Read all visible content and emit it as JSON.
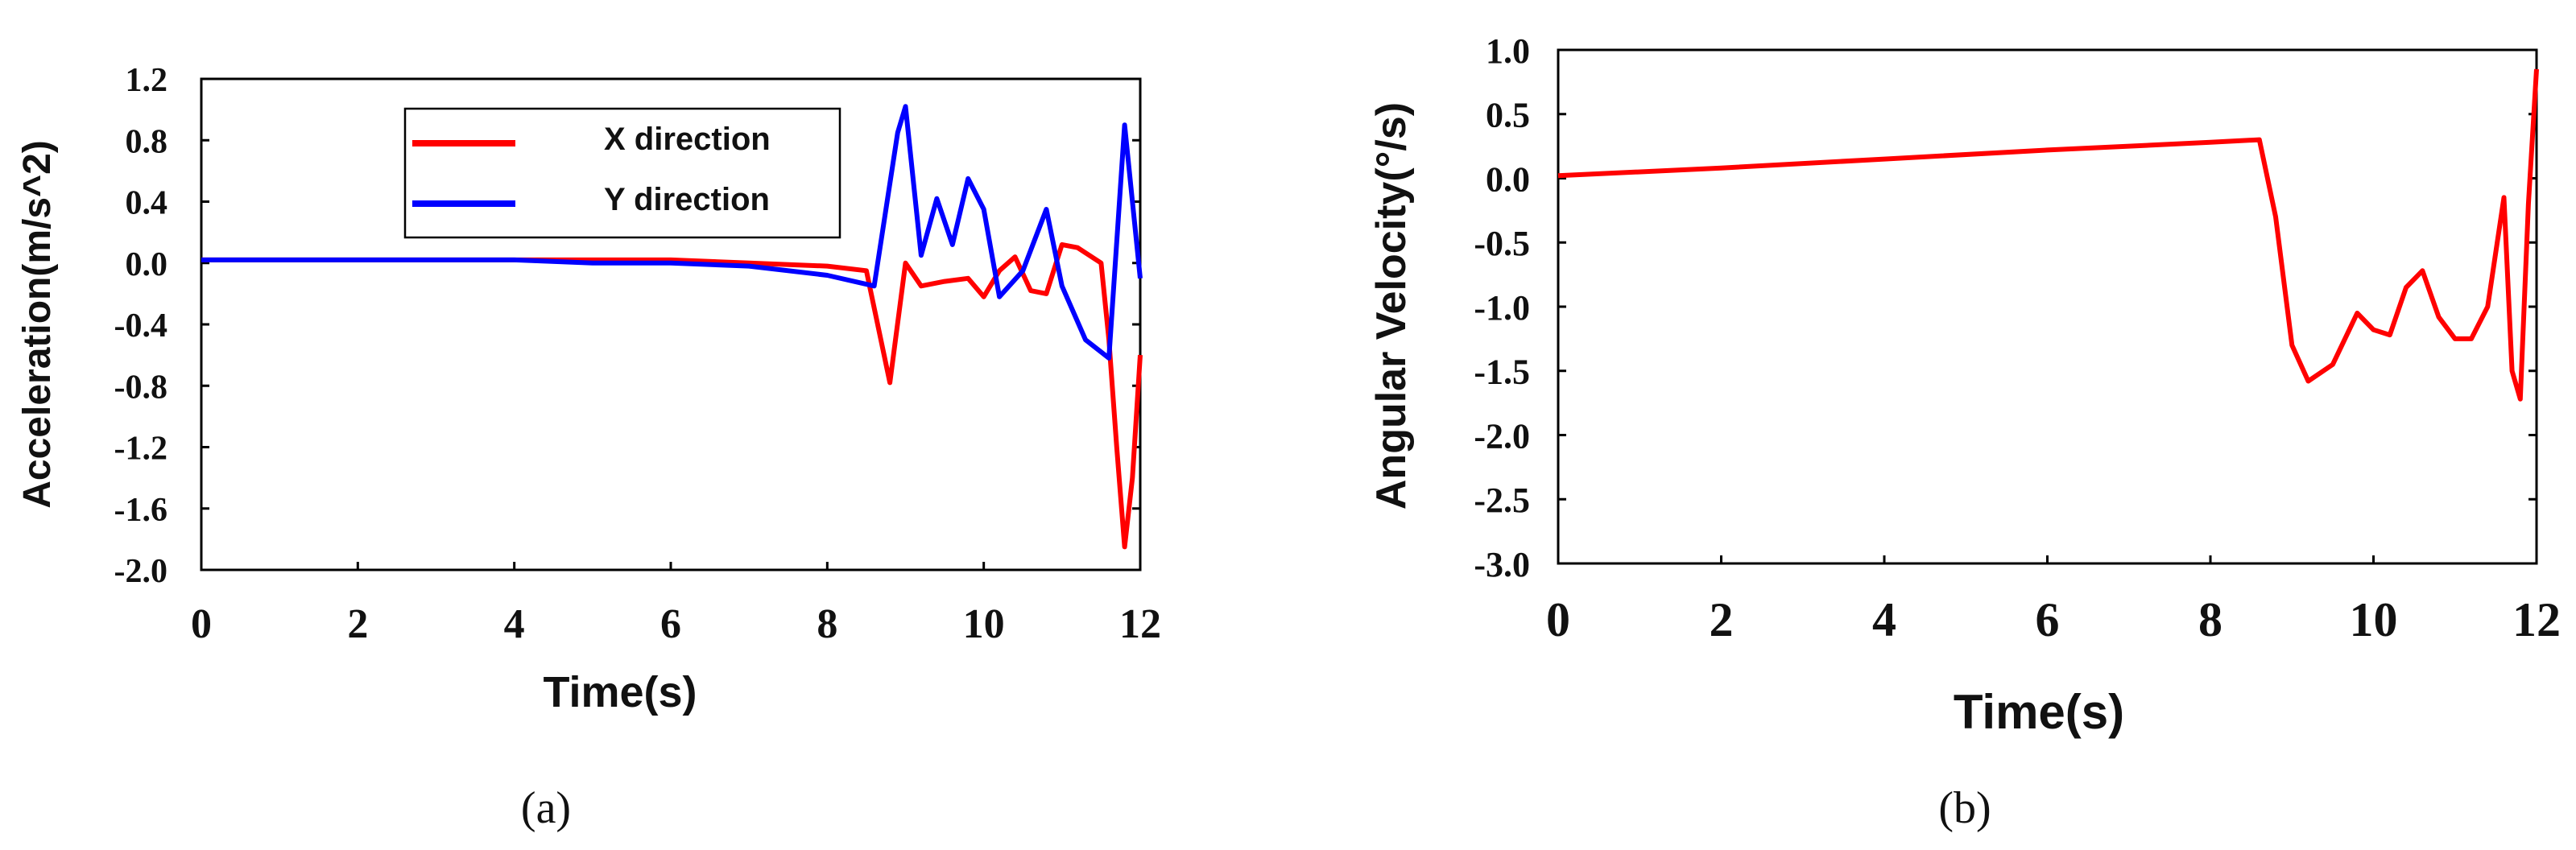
{
  "colors": {
    "x_series": "#ff0000",
    "y_series": "#0000ff",
    "axis": "#000000"
  },
  "chart_data": [
    {
      "panel": "(a)",
      "type": "line",
      "title": "",
      "xlabel": "Time(s)",
      "ylabel": "Acceleration(m/s^2)",
      "xlim": [
        0,
        12
      ],
      "ylim": [
        -2.0,
        1.2
      ],
      "xticks": [
        0,
        2,
        4,
        6,
        8,
        10,
        12
      ],
      "xtick_labels": [
        "0",
        "2",
        "4",
        "6",
        "8",
        "10",
        "12"
      ],
      "yticks": [
        1.2,
        0.8,
        0.4,
        0.0,
        -0.4,
        -0.8,
        -1.2,
        -1.6,
        -2.0
      ],
      "ytick_labels": [
        "1.2",
        "0.8",
        "0.4",
        "0.0",
        "-0.4",
        "-0.8",
        "-1.2",
        "-1.6",
        "-2.0"
      ],
      "grid": false,
      "legend_position": "top-center",
      "series": [
        {
          "name": "X direction",
          "color": "#ff0000",
          "x": [
            0,
            2,
            4,
            6,
            7,
            8,
            8.5,
            8.8,
            9.0,
            9.2,
            9.5,
            9.8,
            10.0,
            10.2,
            10.4,
            10.6,
            10.8,
            11.0,
            11.2,
            11.5,
            11.6,
            11.7,
            11.8,
            11.9,
            12.0
          ],
          "y": [
            0.02,
            0.02,
            0.02,
            0.02,
            0.0,
            -0.02,
            -0.05,
            -0.78,
            0.0,
            -0.15,
            -0.12,
            -0.1,
            -0.22,
            -0.05,
            0.04,
            -0.18,
            -0.2,
            0.12,
            0.1,
            0.0,
            -0.5,
            -1.2,
            -1.85,
            -1.4,
            -0.6
          ]
        },
        {
          "name": "Y direction",
          "color": "#0000ff",
          "x": [
            0,
            2,
            4,
            5,
            6,
            7,
            8,
            8.6,
            8.9,
            9.0,
            9.2,
            9.4,
            9.6,
            9.8,
            10.0,
            10.2,
            10.5,
            10.8,
            11.0,
            11.3,
            11.6,
            11.8,
            12.0
          ],
          "y": [
            0.02,
            0.02,
            0.02,
            0.0,
            0.0,
            -0.02,
            -0.08,
            -0.15,
            0.85,
            1.02,
            0.05,
            0.42,
            0.12,
            0.55,
            0.35,
            -0.22,
            -0.05,
            0.35,
            -0.15,
            -0.5,
            -0.62,
            0.9,
            -0.1
          ]
        }
      ]
    },
    {
      "panel": "(b)",
      "type": "line",
      "title": "",
      "xlabel": "Time(s)",
      "ylabel": "Angular Velocity(°/s)",
      "xlim": [
        0,
        12
      ],
      "ylim": [
        -3.0,
        1.0
      ],
      "xticks": [
        0,
        2,
        4,
        6,
        8,
        10,
        12
      ],
      "xtick_labels": [
        "0",
        "2",
        "4",
        "6",
        "8",
        "10",
        "12"
      ],
      "yticks": [
        1.0,
        0.5,
        0.0,
        -0.5,
        -1.0,
        -1.5,
        -2.0,
        -2.5,
        -3.0
      ],
      "ytick_labels": [
        "1.0",
        "0.5",
        "0.0",
        "-0.5",
        "-1.0",
        "-1.5",
        "-2.0",
        "-2.5",
        "-3.0"
      ],
      "grid": false,
      "series": [
        {
          "name": "Angular velocity",
          "color": "#ff0000",
          "x": [
            0,
            2,
            4,
            6,
            8,
            8.6,
            8.8,
            9.0,
            9.2,
            9.5,
            9.8,
            10.0,
            10.2,
            10.4,
            10.6,
            10.8,
            11.0,
            11.2,
            11.4,
            11.6,
            11.7,
            11.8,
            11.9,
            12.0
          ],
          "y": [
            0.02,
            0.08,
            0.15,
            0.22,
            0.28,
            0.3,
            -0.3,
            -1.3,
            -1.58,
            -1.45,
            -1.05,
            -1.18,
            -1.22,
            -0.85,
            -0.72,
            -1.08,
            -1.25,
            -1.25,
            -1.0,
            -0.15,
            -1.5,
            -1.72,
            -0.2,
            0.85
          ]
        }
      ]
    }
  ],
  "captions": [
    "(a)",
    "(b)"
  ]
}
